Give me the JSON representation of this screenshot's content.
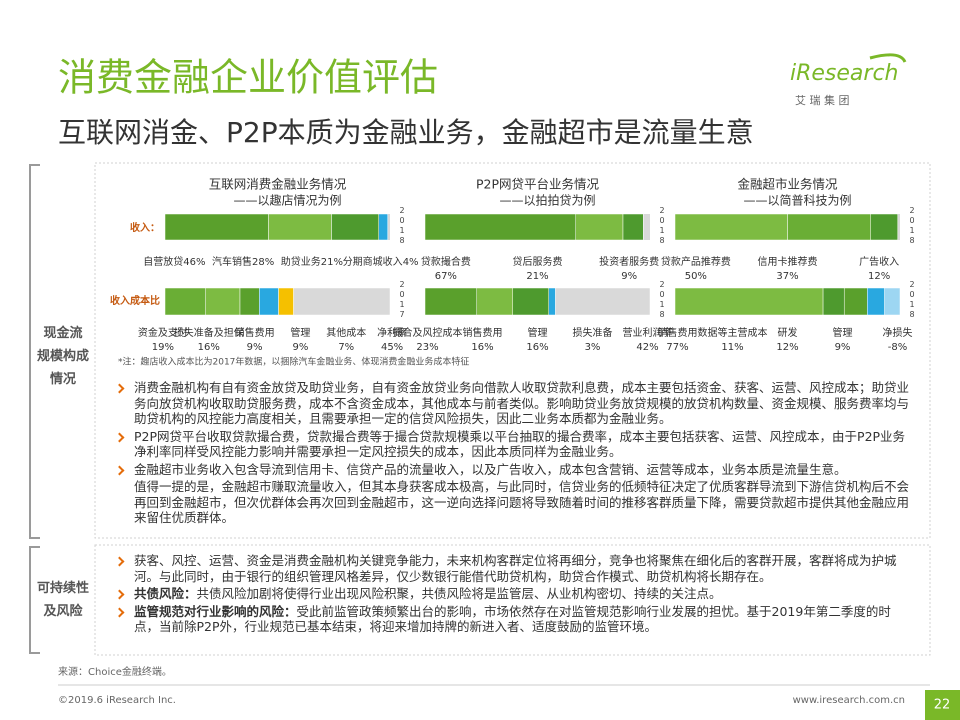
{
  "header": {
    "title": "消费金融企业价值评估",
    "subtitle": "互联网消金、P2P本质为金融业务，金融超市是流量生意",
    "logo": "iResearch",
    "logo_sub": "艾 瑞 集 团"
  },
  "sections": [
    {
      "label": [
        "现金流",
        "规模构成",
        "情况"
      ]
    },
    {
      "label": [
        "可持续性",
        "及风险"
      ]
    }
  ],
  "row_labels": {
    "income": "收入：",
    "cost": "收入成本比"
  },
  "panels": [
    {
      "title": "互联网消费金融业务情况",
      "subtitle": "——以趣店情况为例",
      "income": {
        "year": "2018",
        "segments": [
          {
            "name": "自营放贷",
            "value": 46,
            "value_label": "46%",
            "color": "#5aa02c"
          },
          {
            "name": "汽车销售",
            "value": 28,
            "value_label": "28%",
            "color": "#7dbb42"
          },
          {
            "name": "助贷业务",
            "value": 21,
            "value_label": "21%",
            "color": "#4e9a2e"
          },
          {
            "name": "分期商城收入",
            "value": 4,
            "value_label": "4%",
            "color": "#29a8e0"
          }
        ]
      },
      "cost": {
        "year": "2017",
        "segments": [
          {
            "name": "资金及支付",
            "value": 19,
            "value_label": "19%",
            "color": "#6aae35"
          },
          {
            "name": "损失准备及担保",
            "value": 16,
            "value_label": "16%",
            "color": "#7dbb42"
          },
          {
            "name": "销售费用",
            "value": 9,
            "value_label": "9%",
            "color": "#5aa02c"
          },
          {
            "name": "管理",
            "value": 9,
            "value_label": "9%",
            "color": "#29a8e0"
          },
          {
            "name": "其他成本",
            "value": 7,
            "value_label": "7%",
            "color": "#f5c000"
          },
          {
            "name": "净利率",
            "value": 45,
            "value_label": "45%",
            "color": "#d9d9d9"
          }
        ]
      }
    },
    {
      "title": "P2P网贷平台业务情况",
      "subtitle": "——以拍拍贷为例",
      "income": {
        "year": "2018",
        "segments": [
          {
            "name": "贷款撮合费",
            "value": 67,
            "value_label": "67%",
            "color": "#5aa02c"
          },
          {
            "name": "贷后服务费",
            "value": 21,
            "value_label": "21%",
            "color": "#7dbb42"
          },
          {
            "name": "投资者服务费",
            "value": 9,
            "value_label": "9%",
            "color": "#4e9a2e"
          }
        ]
      },
      "cost": {
        "year": "2018",
        "segments": [
          {
            "name": "撮合及风控成本",
            "value": 23,
            "value_label": "23%",
            "color": "#5aa02c"
          },
          {
            "name": "销售费用",
            "value": 16,
            "value_label": "16%",
            "color": "#7dbb42"
          },
          {
            "name": "管理",
            "value": 16,
            "value_label": "16%",
            "color": "#4e9a2e"
          },
          {
            "name": "损失准备",
            "value": 3,
            "value_label": "3%",
            "color": "#29a8e0"
          },
          {
            "name": "营业利润率",
            "value": 42,
            "value_label": "42%",
            "color": "#d9d9d9"
          }
        ]
      }
    },
    {
      "title": "金融超市业务情况",
      "subtitle": "——以简普科技为例",
      "income": {
        "year": "2018",
        "segments": [
          {
            "name": "贷款产品推荐费",
            "value": 50,
            "value_label": "50%",
            "color": "#7dbb42"
          },
          {
            "name": "信用卡推荐费",
            "value": 37,
            "value_label": "37%",
            "color": "#6aae35"
          },
          {
            "name": "广告收入",
            "value": 12,
            "value_label": "12%",
            "color": "#4e9a2e"
          }
        ]
      },
      "cost": {
        "year": "2018",
        "segments": [
          {
            "name": "销售费用",
            "value": 77,
            "value_label": "77%",
            "color": "#7dbb42"
          },
          {
            "name": "数据等主营成本",
            "value": 11,
            "value_label": "11%",
            "color": "#4e9a2e"
          },
          {
            "name": "研发",
            "value": 12,
            "value_label": "12%",
            "color": "#5aa02c"
          },
          {
            "name": "管理",
            "value": 9,
            "value_label": "9%",
            "color": "#29a8e0"
          },
          {
            "name": "净损失",
            "value": -8,
            "value_label": "-8%",
            "color": "#9dd6f2"
          }
        ]
      }
    }
  ],
  "note": "*注：趣店收入成本比为2017年数据，以捆除汽车金融业务、体现消费金融业务成本特征",
  "bullets": [
    {
      "text": "消费金融机构有自有资金放贷及助贷业务，自有资金放贷业务向借款人收取贷款利息费，成本主要包括资金、获客、运营、风控成本；助贷业务向放贷机构收取助贷服务费，成本不含资金成本，其他成本与前者类似。影响助贷业务放贷规模的放贷机构数量、资金规模、服务费率均与助贷机构的风控能力高度相关，且需要承担一定的信贷风险损失，因此二业务本质都为金融业务。"
    },
    {
      "text": "P2P网贷平台收取贷款撮合费，贷款撮合费等于撮合贷款规模乘以平台抽取的撮合费率，成本主要包括获客、运营、风控成本，由于P2P业务净利率同样受风控能力影响并需要承担一定风控损失的成本，因此本质同样为金融业务。"
    },
    {
      "text": "金融超市业务收入包含导流到信用卡、信贷产品的流量收入，以及广告收入，成本包含营销、运营等成本，业务本质是流量生意。"
    },
    {
      "continuation": "值得一提的是，金融超市赚取流量收入，但其本身获客成本极高，与此同时，信贷业务的低频特征决定了优质客群导流到下游信贷机构后不会再回到金融超市，但次优群体会再次回到金融超市，这一逆向选择问题将导致随着时间的推移客群质量下降，需要贷款超市提供其他金融应用来留住优质群体。"
    }
  ],
  "risks": [
    {
      "text": "获客、风控、运营、资金是消费金融机构关键竞争能力，未来机构客群定位将再细分，竞争也将聚焦在细化后的客群开展，客群将成为护城河。与此同时，由于银行的组织管理风格差异，仅少数银行能借代助贷机构，助贷合作模式、助贷机构将长期存在。"
    },
    {
      "lead": "共债风险：",
      "text": "共债风险加剧将使得行业出现风险积聚，共债风险将是监管层、从业机构密切、持续的关注点。"
    },
    {
      "lead": "监管规范对行业影响的风险：",
      "text": "受此前监管政策频繁出台的影响，市场依然存在对监管规范影响行业发展的担忧。基于2019年第二季度的时点，当前除P2P外，行业规范已基本结束，将迎来增加持牌的新进入者、适度鼓励的监管环境。"
    }
  ],
  "footer": {
    "source": "来源：Choice金融终端。",
    "copyright": "©2019.6 iResearch Inc.",
    "url": "www.iresearch.com.cn",
    "page": "22"
  }
}
